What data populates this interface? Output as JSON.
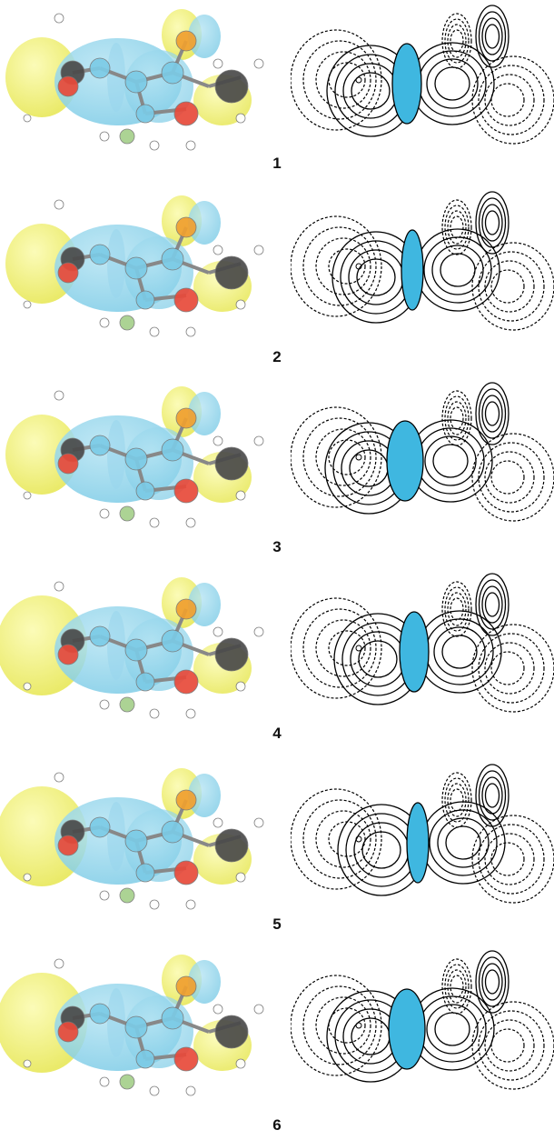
{
  "panels": [
    {
      "label": "1"
    },
    {
      "label": "2"
    },
    {
      "label": "3"
    },
    {
      "label": "4"
    },
    {
      "label": "5"
    },
    {
      "label": "6"
    }
  ],
  "colors": {
    "lobe_yellow": "#e8e85a",
    "lobe_blue": "#7ccbe6",
    "carbon": "#4a4a4a",
    "oxygen": "#e84a3a",
    "hydrogen": "#ffffff",
    "fluorine": "#a6d08c",
    "node_fill": "#3fb7e0",
    "contour_line": "#000000"
  }
}
